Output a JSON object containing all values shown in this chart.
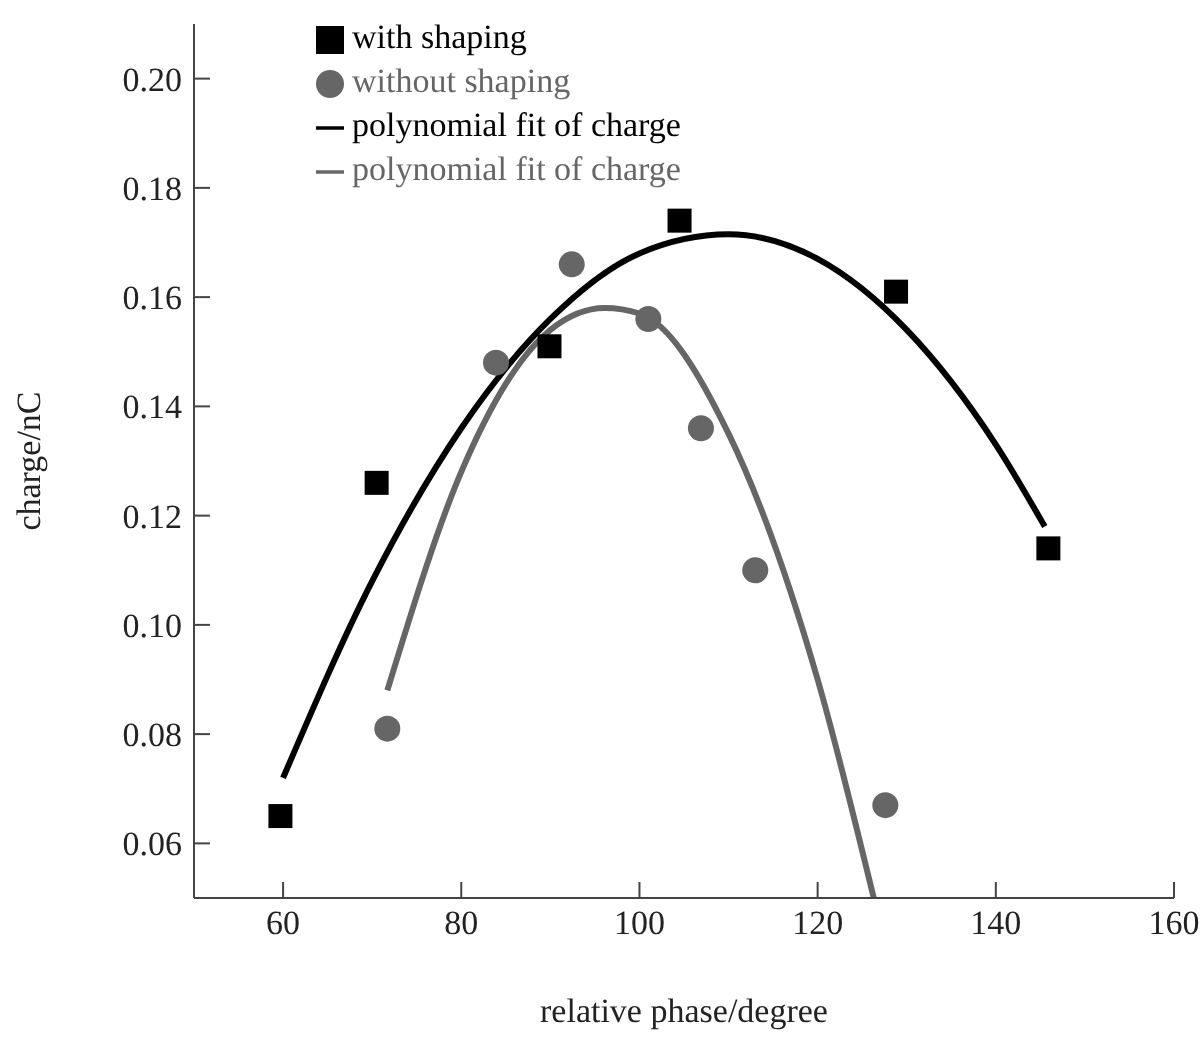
{
  "chart_data": {
    "type": "scatter",
    "xlabel": "relative phase/degree",
    "ylabel": "charge/nC",
    "xlim": [
      50,
      160
    ],
    "xticks": [
      60,
      80,
      100,
      120,
      140,
      160
    ],
    "ylim": [
      0.05,
      0.21
    ],
    "yticks": [
      {
        "value": 0.06,
        "label": "0.06"
      },
      {
        "value": 0.08,
        "label": "0.08"
      },
      {
        "value": 0.1,
        "label": "0.10"
      },
      {
        "value": 0.12,
        "label": "0.12"
      },
      {
        "value": 0.14,
        "label": "0.14"
      },
      {
        "value": 0.16,
        "label": "0.16"
      },
      {
        "value": 0.18,
        "label": "0.18"
      },
      {
        "value": 0.2,
        "label": "0.20"
      }
    ],
    "grid": false,
    "legend": "top",
    "series": [
      {
        "name": "with shaping",
        "marker": "square",
        "color": "#000000",
        "x": [
          59.7,
          70.5,
          89.9,
          104.5,
          128.8,
          145.9
        ],
        "values": [
          0.065,
          0.126,
          0.151,
          0.174,
          0.161,
          0.114
        ]
      },
      {
        "name": "without shaping",
        "marker": "circle",
        "color": "#666666",
        "x": [
          71.7,
          83.9,
          92.4,
          101,
          106.9,
          113,
          127.6
        ],
        "values": [
          0.081,
          0.148,
          0.166,
          0.156,
          0.136,
          0.11,
          0.067
        ]
      },
      {
        "name": "polynomial fit of charge",
        "type": "line",
        "color": "#000000",
        "x": [
          60,
          70,
          80,
          90,
          100,
          110,
          120,
          130,
          140,
          145.5
        ],
        "values": [
          0.072,
          0.108,
          0.136,
          0.156,
          0.168,
          0.1715,
          0.167,
          0.154,
          0.133,
          0.118
        ]
      },
      {
        "name": "polynomial fit of charge",
        "type": "line",
        "color": "#666666",
        "x": [
          71.7,
          80,
          90,
          96.1,
          100,
          110,
          120,
          126.3
        ],
        "values": [
          0.088,
          0.128,
          0.154,
          0.158,
          0.157,
          0.135,
          0.09,
          0.05
        ]
      }
    ]
  }
}
